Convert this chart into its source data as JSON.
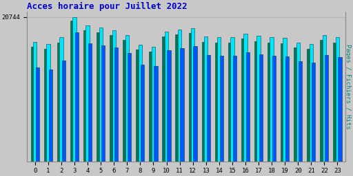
{
  "title": "Acces horaire pour Juillet 2022",
  "title_color": "#0000cc",
  "title_fontsize": 9,
  "ylabel_right": "Pages / Fichiers / Hits",
  "ylabel_right_color": "#008080",
  "background_color": "#c8c8c8",
  "plot_background": "#c8c8c8",
  "x_labels": [
    "0",
    "1",
    "2",
    "3",
    "4",
    "5",
    "6",
    "7",
    "8",
    "9",
    "10",
    "11",
    "12",
    "13",
    "14",
    "15",
    "16",
    "17",
    "18",
    "19",
    "20",
    "21",
    "22",
    "23"
  ],
  "ytick_label": "20744",
  "hits": [
    17200,
    16900,
    17800,
    20744,
    19500,
    19200,
    18800,
    18100,
    16800,
    16500,
    18600,
    18900,
    19100,
    17900,
    17800,
    17800,
    18300,
    18000,
    17800,
    17700,
    17100,
    16900,
    18100,
    17800
  ],
  "fichiers": [
    13500,
    13200,
    14500,
    18500,
    17000,
    16700,
    16400,
    15600,
    13900,
    13700,
    16000,
    16300,
    16600,
    15300,
    15200,
    15200,
    15700,
    15400,
    15200,
    15100,
    14400,
    14200,
    15300,
    15000
  ],
  "pages": [
    16500,
    16200,
    17100,
    20200,
    18800,
    18500,
    18100,
    17400,
    16100,
    15800,
    17900,
    18200,
    18400,
    17200,
    17100,
    17100,
    17600,
    17300,
    17100,
    17000,
    16400,
    16200,
    17400,
    17100
  ],
  "hits_color": "#00e5ff",
  "fichiers_color": "#0055ff",
  "pages_color": "#007755",
  "bar_edge_color": "#004444",
  "ylim": [
    0,
    21500
  ],
  "figsize": [
    5.12,
    2.56
  ],
  "dpi": 100
}
